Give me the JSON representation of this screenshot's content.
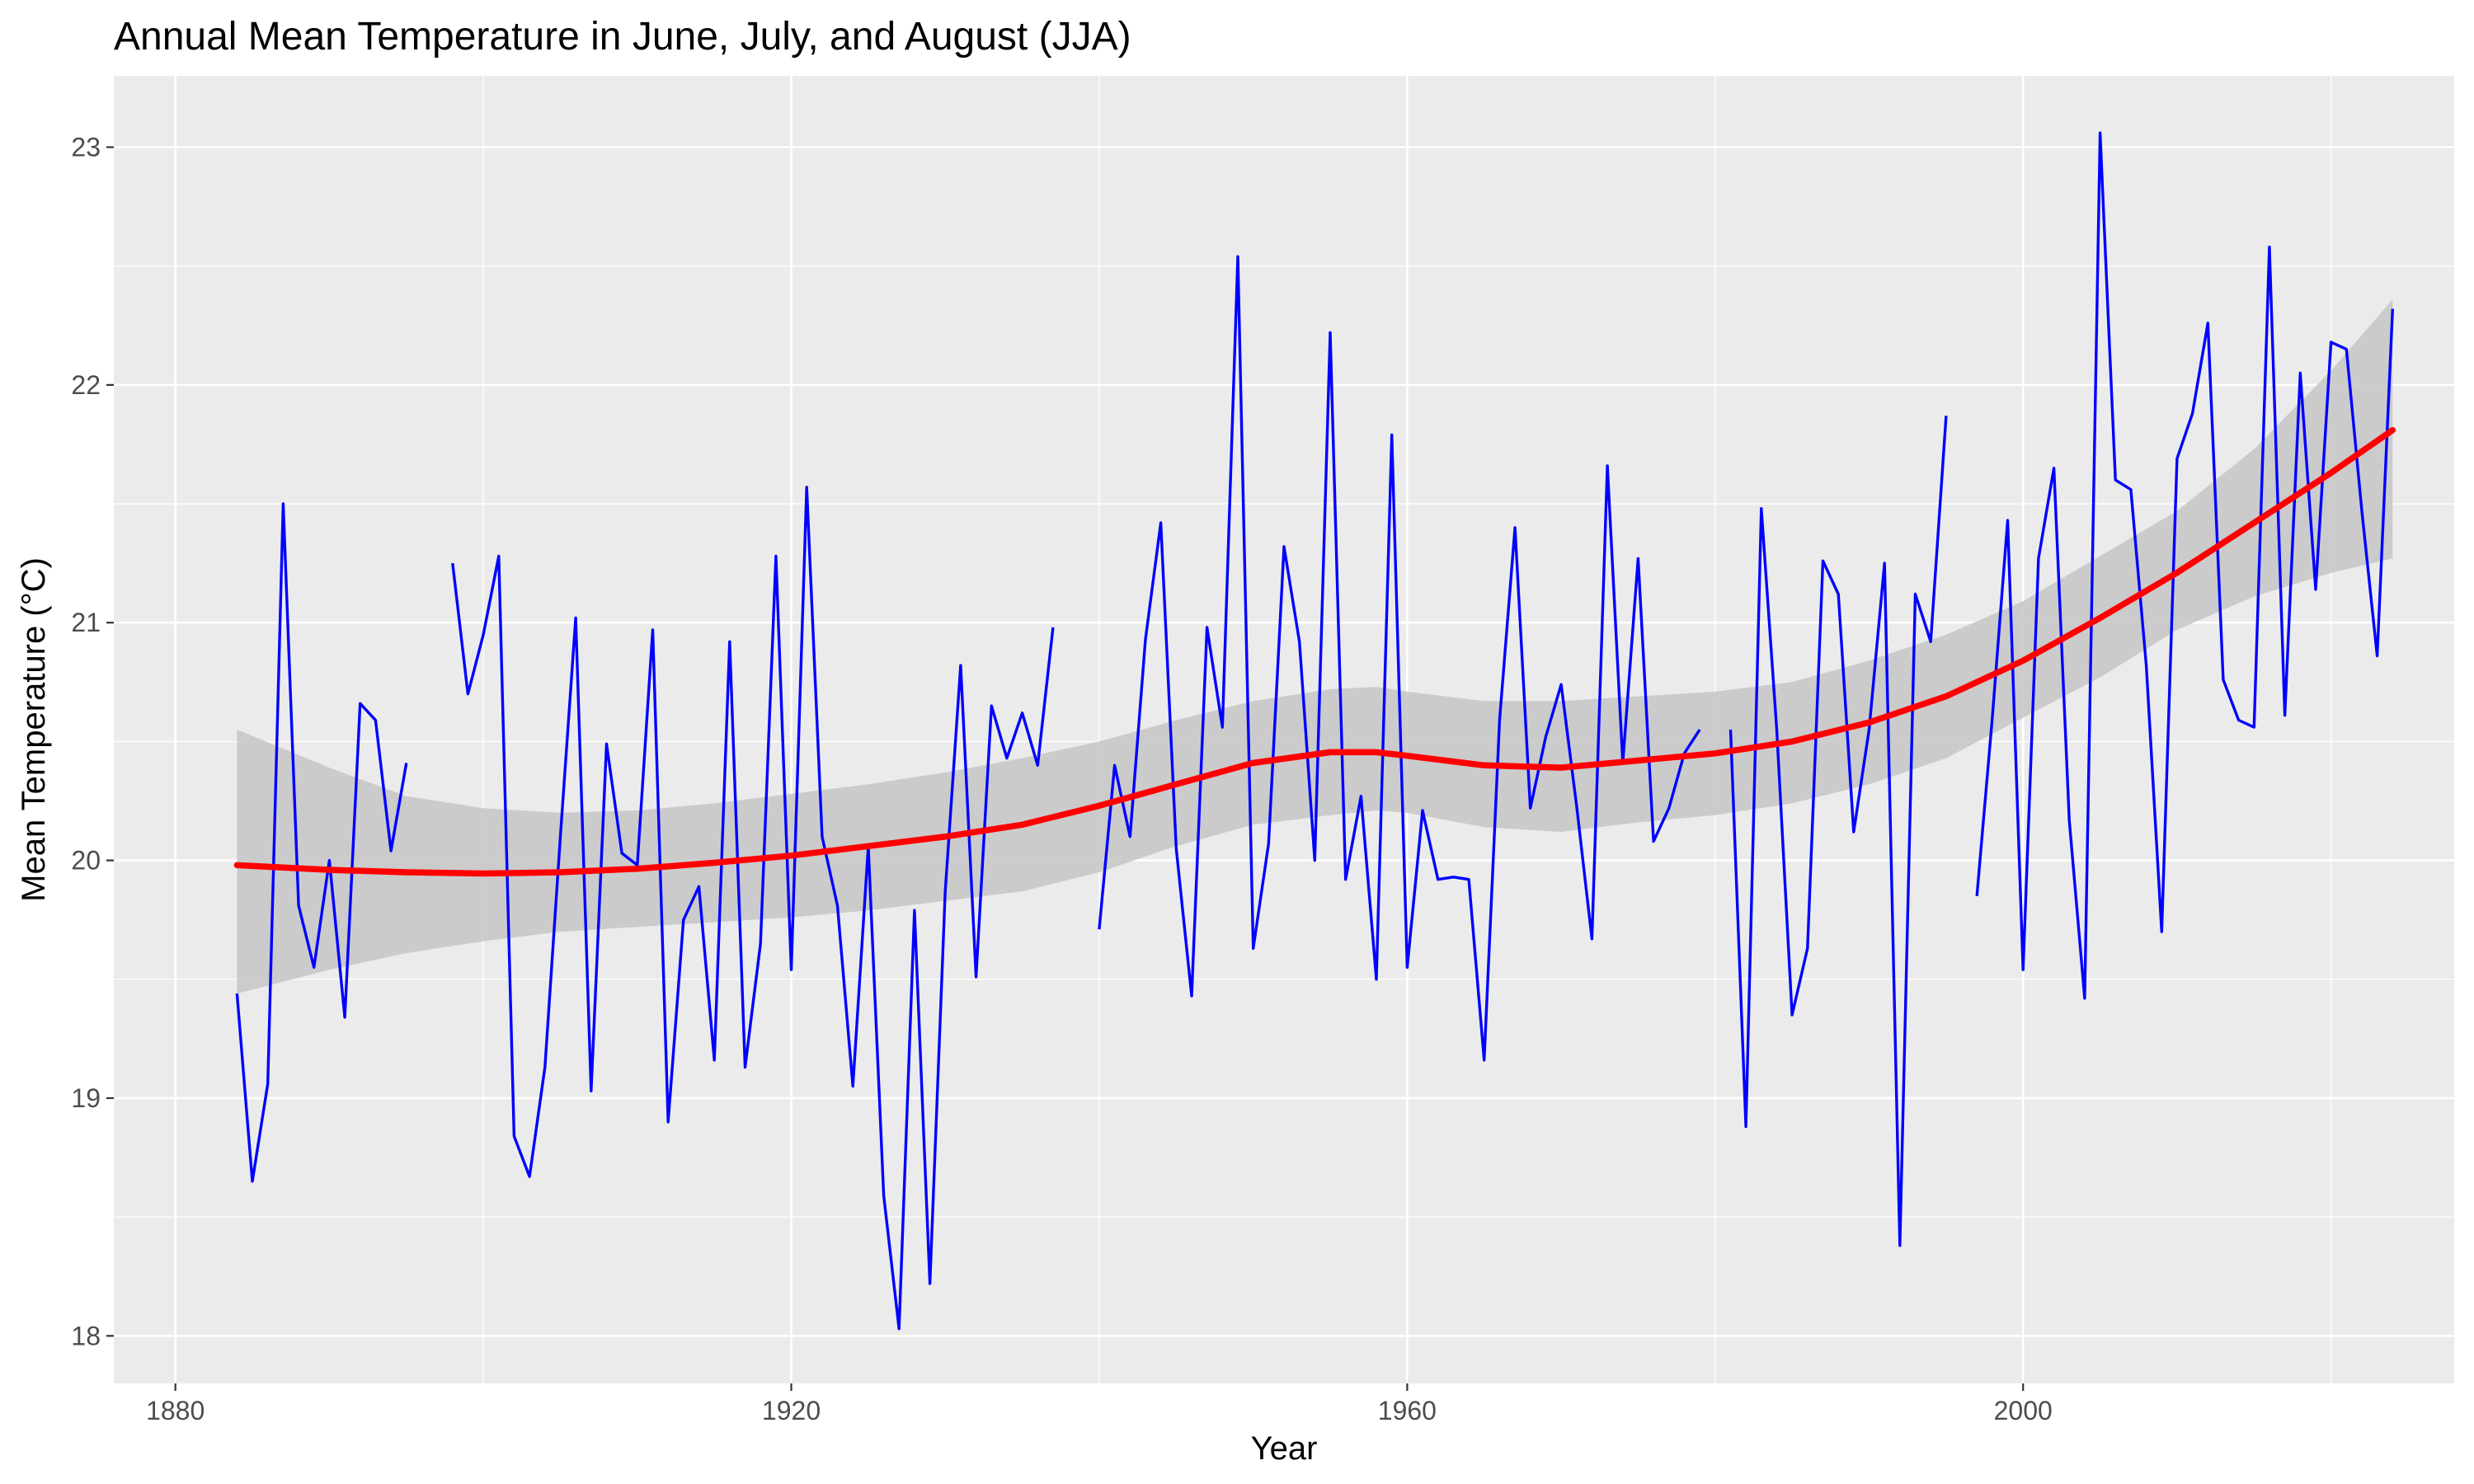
{
  "chart_data": {
    "type": "line",
    "title": "Annual Mean Temperature in June, July, and August (JJA)",
    "xlabel": "Year",
    "ylabel": "Mean Temperature (°C)",
    "xlim": [
      1876,
      2028
    ],
    "ylim": [
      17.8,
      23.3
    ],
    "x_ticks": [
      1880,
      1920,
      1960,
      2000
    ],
    "x_tick_labels": [
      "1880",
      "1920",
      "1960",
      "2000"
    ],
    "y_ticks": [
      18,
      19,
      20,
      21,
      22,
      23
    ],
    "y_tick_labels": [
      "18",
      "19",
      "20",
      "21",
      "22",
      "23"
    ],
    "grid": true,
    "legend": "none",
    "colors": {
      "panel": "#ebebeb",
      "grid": "#ffffff",
      "series": "#0000ff",
      "smooth": "#ff0000",
      "band": "#c8c8c8"
    },
    "series": [
      {
        "x": [
          1884,
          1885,
          1886,
          1887,
          1888,
          1889,
          1890,
          1891,
          1892,
          1893,
          1894,
          1895,
          null,
          1898,
          1899,
          1900,
          1901,
          1902,
          1903,
          1904,
          1905,
          1906,
          1907,
          1908,
          1909,
          1910,
          1911,
          1912,
          1913,
          1914,
          1915,
          1916,
          1917,
          1918,
          1919,
          1920,
          1921,
          1922,
          1923,
          1924,
          1925,
          1926,
          1927,
          1928,
          1929,
          1930,
          1931,
          1932,
          1933,
          1934,
          1935,
          1936,
          1937,
          null,
          1940,
          1941,
          1942,
          1943,
          1944,
          1945,
          1946,
          1947,
          1948,
          1949,
          1950,
          1951,
          1952,
          1953,
          1954,
          1955,
          1956,
          1957,
          1958,
          1959,
          1960,
          1961,
          1962,
          1963,
          1964,
          1965,
          1966,
          1967,
          1968,
          1969,
          1970,
          1971,
          1972,
          1973,
          1974,
          1975,
          1976,
          1977,
          1978,
          1979,
          null,
          1981,
          1982,
          1983,
          1984,
          1985,
          1986,
          1987,
          1988,
          1989,
          1990,
          1991,
          1992,
          1993,
          1994,
          1995,
          null,
          1997,
          1998,
          1999,
          2000,
          2001,
          2002,
          2003,
          2004,
          2005,
          2006,
          2007,
          2008,
          2009,
          2010,
          2011,
          2012,
          2013,
          2014,
          2015,
          2016,
          2017,
          2018,
          2019,
          2020,
          2021,
          2022,
          2023,
          2024
        ],
        "values": [
          19.44,
          18.65,
          19.06,
          21.5,
          19.81,
          19.55,
          20.0,
          19.34,
          20.66,
          20.59,
          20.04,
          20.41,
          null,
          21.25,
          20.7,
          20.95,
          21.28,
          18.84,
          18.67,
          19.13,
          20.1,
          21.02,
          19.03,
          20.49,
          20.03,
          19.98,
          20.97,
          18.9,
          19.75,
          19.89,
          19.16,
          20.92,
          19.13,
          19.65,
          21.28,
          19.54,
          21.57,
          20.1,
          19.81,
          19.05,
          20.06,
          18.59,
          18.03,
          19.79,
          18.22,
          19.87,
          20.82,
          19.51,
          20.65,
          20.43,
          20.62,
          20.4,
          20.98,
          null,
          19.71,
          20.4,
          20.1,
          20.93,
          21.42,
          20.05,
          19.43,
          20.98,
          20.56,
          22.54,
          19.63,
          20.07,
          21.32,
          20.92,
          20.0,
          22.22,
          19.92,
          20.27,
          19.5,
          21.79,
          19.55,
          20.21,
          19.92,
          19.93,
          19.92,
          19.16,
          20.59,
          21.4,
          20.22,
          20.52,
          20.74,
          20.23,
          19.67,
          21.66,
          20.41,
          21.27,
          20.08,
          20.22,
          20.45,
          20.55,
          null,
          20.55,
          18.88,
          21.48,
          20.55,
          19.35,
          19.63,
          21.26,
          21.12,
          20.12,
          20.55,
          21.25,
          18.38,
          21.12,
          20.92,
          21.87,
          null,
          19.85,
          20.6,
          21.43,
          19.54,
          21.27,
          21.65,
          20.17,
          19.42,
          23.06,
          21.6,
          21.56,
          20.82,
          19.7,
          21.69,
          21.88,
          22.26,
          20.76,
          20.59,
          20.56,
          22.58,
          20.61,
          22.05,
          21.14,
          22.18,
          22.15,
          21.47,
          20.86,
          22.32
        ]
      }
    ],
    "smooth": {
      "x": [
        1884,
        1890,
        1895,
        1900,
        1905,
        1910,
        1915,
        1920,
        1925,
        1930,
        1935,
        1940,
        1945,
        1950,
        1955,
        1958,
        1960,
        1965,
        1970,
        1975,
        1980,
        1985,
        1990,
        1995,
        2000,
        2005,
        2010,
        2015,
        2020,
        2024
      ],
      "values": [
        19.98,
        19.96,
        19.95,
        19.945,
        19.95,
        19.965,
        19.99,
        20.02,
        20.06,
        20.1,
        20.15,
        20.23,
        20.32,
        20.41,
        20.455,
        20.455,
        20.44,
        20.4,
        20.39,
        20.42,
        20.45,
        20.5,
        20.58,
        20.69,
        20.84,
        21.02,
        21.21,
        21.42,
        21.63,
        21.81
      ],
      "lower": [
        19.44,
        19.54,
        19.61,
        19.66,
        19.7,
        19.72,
        19.74,
        19.76,
        19.79,
        19.83,
        19.87,
        19.95,
        20.06,
        20.15,
        20.19,
        20.21,
        20.2,
        20.14,
        20.12,
        20.16,
        20.19,
        20.24,
        20.32,
        20.43,
        20.6,
        20.77,
        20.97,
        21.11,
        21.21,
        21.27
      ],
      "upper": [
        20.55,
        20.39,
        20.27,
        20.22,
        20.2,
        20.21,
        20.24,
        20.28,
        20.32,
        20.37,
        20.43,
        20.5,
        20.59,
        20.67,
        20.72,
        20.73,
        20.71,
        20.67,
        20.67,
        20.69,
        20.71,
        20.75,
        20.84,
        20.95,
        21.09,
        21.28,
        21.47,
        21.73,
        22.06,
        22.36
      ]
    }
  }
}
